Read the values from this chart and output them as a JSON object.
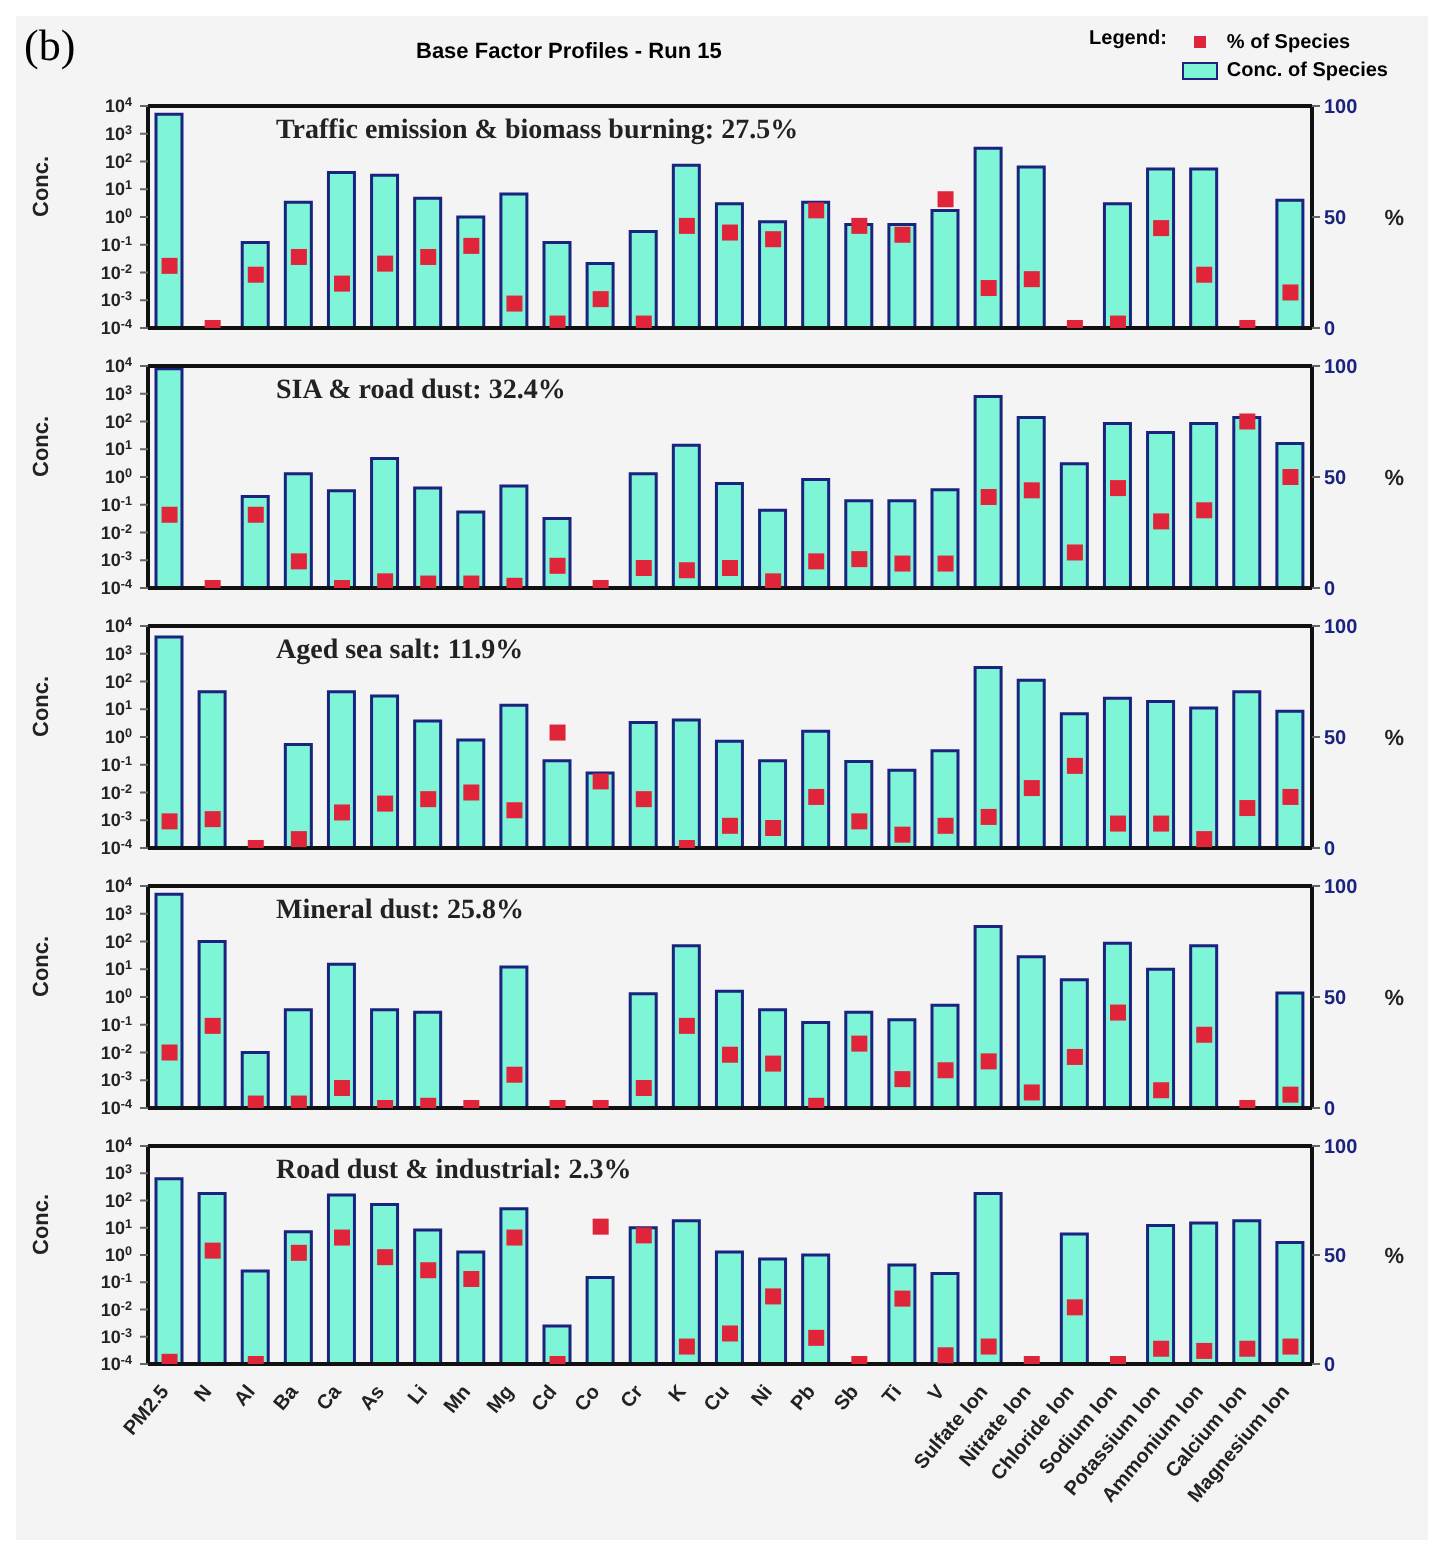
{
  "chart_data": [
    {
      "type": "bar",
      "title": "Base Factor Profiles - Run 15",
      "legend": "top right",
      "legend_title": "Legend:",
      "annotations": [
        "(b)",
        "Traffic emission & biomass burning: 27.5%"
      ],
      "ylabel": "Conc.",
      "y2label": "%",
      "log": "y",
      "tick_labels": "y",
      "categories": [
        null,
        null,
        null,
        null,
        null,
        null,
        null,
        null,
        null,
        null,
        null,
        null,
        null,
        null,
        null,
        null,
        null,
        null,
        null,
        null,
        null,
        null,
        null,
        null,
        null,
        null,
        null
      ],
      "ylim": [
        0.0001,
        10000
      ],
      "yticks": [
        {
          "value": 0.0001,
          "label": "10$^{-4}$"
        },
        {
          "value": 0.001,
          "label": "10$^{-3}$"
        },
        {
          "value": 0.01,
          "label": "10$^{-2}$"
        },
        {
          "value": 0.1,
          "label": "10$^{-1}$"
        },
        {
          "value": 1,
          "label": "10$^{0}$"
        },
        {
          "value": 10,
          "label": "10$^{1}$"
        },
        {
          "value": 100,
          "label": "10$^{2}$"
        },
        {
          "value": 1000,
          "label": "10$^{3}$"
        },
        {
          "value": 10000,
          "label": "10$^{4}$"
        }
      ],
      "y2lim": [
        0,
        100
      ],
      "y2ticks": [
        0,
        50,
        100
      ],
      "series": [
        {
          "name": "Conc. of Species",
          "color": "#7ff5d8",
          "values": [
            5000,
            null,
            0.12,
            3.4,
            40,
            32,
            4.7,
            1,
            6.8,
            0.12,
            0.021,
            0.3,
            74,
            3,
            0.68,
            3.4,
            0.54,
            0.54,
            1.7,
            300,
            63,
            null,
            3,
            54,
            54,
            null,
            4
          ]
        },
        {
          "name": "% of Species",
          "type": "scatter",
          "axis": "y2",
          "marker": "square",
          "color": "#e0243a",
          "values": [
            28,
            0,
            24,
            32,
            20,
            29,
            32,
            37,
            11,
            2,
            13,
            2,
            46,
            43,
            40,
            53,
            46,
            42,
            58,
            18,
            22,
            0,
            2,
            45,
            24,
            0,
            16
          ]
        }
      ]
    },
    {
      "type": "bar",
      "annotations": [
        "SIA & road dust: 32.4%"
      ],
      "ylabel": "Conc.",
      "y2label": "%",
      "log": "y",
      "tick_labels": "y",
      "categories": [
        null,
        null,
        null,
        null,
        null,
        null,
        null,
        null,
        null,
        null,
        null,
        null,
        null,
        null,
        null,
        null,
        null,
        null,
        null,
        null,
        null,
        null,
        null,
        null,
        null,
        null,
        null
      ],
      "ylim": [
        0.0001,
        10000
      ],
      "yticks": [
        {
          "value": 0.0001,
          "label": "10$^{-4}$"
        },
        {
          "value": 0.001,
          "label": "10$^{-3}$"
        },
        {
          "value": 0.01,
          "label": "10$^{-2}$"
        },
        {
          "value": 0.1,
          "label": "10$^{-1}$"
        },
        {
          "value": 1,
          "label": "10$^{0}$"
        },
        {
          "value": 10,
          "label": "10$^{1}$"
        },
        {
          "value": 100,
          "label": "10$^{2}$"
        },
        {
          "value": 1000,
          "label": "10$^{3}$"
        },
        {
          "value": 10000,
          "label": "10$^{4}$"
        }
      ],
      "y2lim": [
        0,
        100
      ],
      "y2ticks": [
        0,
        50,
        100
      ],
      "series": [
        {
          "color": "#7ff5d8",
          "values": [
            8000,
            null,
            0.2,
            1.3,
            0.32,
            4.6,
            0.4,
            0.055,
            0.47,
            0.032,
            null,
            1.3,
            14,
            0.58,
            0.063,
            0.81,
            0.14,
            0.14,
            0.35,
            800,
            140,
            3,
            85,
            40,
            85,
            140,
            16
          ]
        },
        {
          "type": "scatter",
          "axis": "y2",
          "marker": "square",
          "color": "#e0243a",
          "values": [
            33,
            0,
            33,
            12,
            0,
            3,
            2,
            2,
            1,
            10,
            0,
            9,
            8,
            9,
            3,
            12,
            13,
            11,
            11,
            41,
            44,
            16,
            45,
            30,
            35,
            75,
            50
          ]
        }
      ]
    },
    {
      "type": "bar",
      "annotations": [
        "Aged sea salt: 11.9%"
      ],
      "ylabel": "Conc.",
      "y2label": "%",
      "log": "y",
      "tick_labels": "y",
      "categories": [
        null,
        null,
        null,
        null,
        null,
        null,
        null,
        null,
        null,
        null,
        null,
        null,
        null,
        null,
        null,
        null,
        null,
        null,
        null,
        null,
        null,
        null,
        null,
        null,
        null,
        null,
        null
      ],
      "ylim": [
        0.0001,
        10000
      ],
      "yticks": [
        {
          "value": 0.0001,
          "label": "10$^{-4}$"
        },
        {
          "value": 0.001,
          "label": "10$^{-3}$"
        },
        {
          "value": 0.01,
          "label": "10$^{-2}$"
        },
        {
          "value": 0.1,
          "label": "10$^{-1}$"
        },
        {
          "value": 1,
          "label": "10$^{0}$"
        },
        {
          "value": 10,
          "label": "10$^{1}$"
        },
        {
          "value": 100,
          "label": "10$^{2}$"
        },
        {
          "value": 1000,
          "label": "10$^{3}$"
        },
        {
          "value": 10000,
          "label": "10$^{4}$"
        }
      ],
      "y2lim": [
        0,
        100
      ],
      "y2ticks": [
        0,
        50,
        100
      ],
      "series": [
        {
          "color": "#7ff5d8",
          "values": [
            4000,
            43,
            null,
            0.54,
            43,
            30,
            3.8,
            0.78,
            14,
            0.14,
            0.05,
            3.3,
            4.1,
            0.71,
            0.14,
            1.6,
            0.13,
            0.063,
            0.32,
            320,
            110,
            6.9,
            25,
            19,
            11,
            43,
            8.5
          ]
        },
        {
          "type": "scatter",
          "axis": "y2",
          "marker": "square",
          "color": "#e0243a",
          "values": [
            12,
            13,
            0,
            4,
            16,
            20,
            22,
            25,
            17,
            52,
            30,
            22,
            0,
            10,
            9,
            23,
            12,
            6,
            10,
            14,
            27,
            37,
            11,
            11,
            4,
            18,
            23
          ]
        }
      ]
    },
    {
      "type": "bar",
      "annotations": [
        "Mineral dust: 25.8%"
      ],
      "ylabel": "Conc.",
      "y2label": "%",
      "log": "y",
      "tick_labels": "y",
      "categories": [
        null,
        null,
        null,
        null,
        null,
        null,
        null,
        null,
        null,
        null,
        null,
        null,
        null,
        null,
        null,
        null,
        null,
        null,
        null,
        null,
        null,
        null,
        null,
        null,
        null,
        null,
        null
      ],
      "ylim": [
        0.0001,
        10000
      ],
      "yticks": [
        {
          "value": 0.0001,
          "label": "10$^{-4}$"
        },
        {
          "value": 0.001,
          "label": "10$^{-3}$"
        },
        {
          "value": 0.01,
          "label": "10$^{-2}$"
        },
        {
          "value": 0.1,
          "label": "10$^{-1}$"
        },
        {
          "value": 1,
          "label": "10$^{0}$"
        },
        {
          "value": 10,
          "label": "10$^{1}$"
        },
        {
          "value": 100,
          "label": "10$^{2}$"
        },
        {
          "value": 1000,
          "label": "10$^{3}$"
        },
        {
          "value": 10000,
          "label": "10$^{4}$"
        }
      ],
      "y2lim": [
        0,
        100
      ],
      "y2ticks": [
        0,
        50,
        100
      ],
      "series": [
        {
          "color": "#7ff5d8",
          "values": [
            5000,
            100,
            0.01,
            0.35,
            15,
            0.35,
            0.28,
            null,
            12,
            null,
            null,
            1.3,
            71,
            1.6,
            0.35,
            0.12,
            0.28,
            0.15,
            0.5,
            350,
            28,
            4.2,
            87,
            10,
            71,
            null,
            1.4
          ]
        },
        {
          "type": "scatter",
          "axis": "y2",
          "marker": "square",
          "color": "#e0243a",
          "values": [
            25,
            37,
            2,
            2,
            9,
            0,
            1,
            0,
            15,
            0,
            0,
            9,
            37,
            24,
            20,
            1,
            29,
            13,
            17,
            21,
            7,
            23,
            43,
            8,
            33,
            0,
            6
          ]
        }
      ]
    },
    {
      "type": "bar",
      "annotations": [
        "Road dust & industrial: 2.3%"
      ],
      "ylabel": "Conc.",
      "y2label": "%",
      "log": "y",
      "categories": [
        "PM2.5",
        "N",
        "Al",
        "Ba",
        "Ca",
        "As",
        "Li",
        "Mn",
        "Mg",
        "Cd",
        "Co",
        "Cr",
        "K",
        "Cu",
        "Ni",
        "Pb",
        "Sb",
        "Ti",
        "V",
        "Sulfate Ion",
        "Nitrate Ion",
        "Chloride Ion",
        "Sodium Ion",
        "Potassium Ion",
        "Ammonium Ion",
        "Calcium Ion",
        "Magnesium Ion"
      ],
      "ylim": [
        0.0001,
        10000
      ],
      "yticks": [
        {
          "value": 0.0001,
          "label": "10$^{-4}$"
        },
        {
          "value": 0.001,
          "label": "10$^{-3}$"
        },
        {
          "value": 0.01,
          "label": "10$^{-2}$"
        },
        {
          "value": 0.1,
          "label": "10$^{-1}$"
        },
        {
          "value": 1,
          "label": "10$^{0}$"
        },
        {
          "value": 10,
          "label": "10$^{1}$"
        },
        {
          "value": 100,
          "label": "10$^{2}$"
        },
        {
          "value": 1000,
          "label": "10$^{3}$"
        },
        {
          "value": 10000,
          "label": "10$^{4}$"
        }
      ],
      "y2lim": [
        0,
        100
      ],
      "y2ticks": [
        0,
        50,
        100
      ],
      "series": [
        {
          "color": "#7ff5d8",
          "values": [
            630,
            180,
            0.26,
            7.2,
            160,
            71,
            8.3,
            1.3,
            50,
            0.0025,
            0.15,
            10,
            18,
            1.3,
            0.71,
            1,
            null,
            0.43,
            0.21,
            180,
            null,
            5.9,
            null,
            12,
            15,
            18,
            2.9
          ]
        },
        {
          "type": "scatter",
          "axis": "y2",
          "marker": "square",
          "color": "#e0243a",
          "values": [
            1,
            52,
            0,
            51,
            58,
            49,
            43,
            39,
            58,
            0,
            63,
            59,
            8,
            14,
            31,
            12,
            0,
            30,
            4,
            8,
            0,
            26,
            0,
            7,
            6,
            7,
            8
          ]
        }
      ]
    }
  ]
}
